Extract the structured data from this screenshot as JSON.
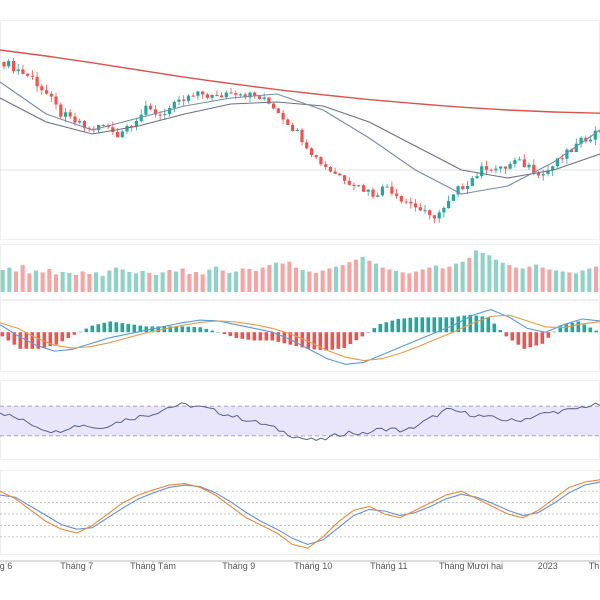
{
  "colors": {
    "up": "#26a69a",
    "down": "#ef5350",
    "ma_long": "#d9534f",
    "ma_mid": "#6c6f85",
    "ma_short": "#7a8aa8",
    "macd_line": "#5b9bd5",
    "signal_line": "#e69a4f",
    "rsi": "#5a5f8c",
    "rsi_band": "#e9e6fb",
    "stoch_k": "#e88a3c",
    "stoch_d": "#6b8fd6",
    "grid": "#eeeeee",
    "frame": "#bbbbbb"
  },
  "chart_data": [
    {
      "type": "candlestick",
      "title": "",
      "series": [
        {
          "name": "",
          "role": "candles",
          "ohlc_shape": "daily bars, Jun 2022 – Jan 2023"
        },
        {
          "name": "",
          "role": "ma-long",
          "values": [
            100,
            98.5,
            96.8,
            95,
            93.2,
            91.6,
            90.1,
            88.8,
            87.6,
            86.6,
            85.7,
            85.0,
            84.5,
            84.2
          ]
        },
        {
          "name": "",
          "role": "ma-mid",
          "values": [
            88,
            82,
            79,
            81,
            84,
            86.5,
            87,
            86,
            82,
            76,
            70,
            68,
            70,
            74
          ]
        },
        {
          "name": "",
          "role": "ma-short",
          "values": [
            92,
            84,
            80,
            83,
            86,
            88,
            89,
            85,
            78,
            70,
            64,
            66,
            72,
            80
          ]
        }
      ],
      "close": [
        97,
        95,
        93,
        89,
        84,
        82,
        80,
        81,
        79,
        82,
        85,
        84,
        86,
        88,
        89,
        88,
        90,
        89,
        88,
        86,
        82,
        78,
        73,
        70,
        68,
        66,
        64,
        66,
        63,
        61,
        58,
        60,
        65,
        68,
        71,
        70,
        72,
        71,
        69,
        72,
        75,
        78,
        80
      ]
    },
    {
      "type": "bar",
      "role": "volume",
      "values": [
        0.45,
        0.5,
        0.42,
        0.55,
        0.38,
        0.44,
        0.4,
        0.47,
        0.36,
        0.41,
        0.39,
        0.35,
        0.42,
        0.37,
        0.4,
        0.33,
        0.44,
        0.5,
        0.46,
        0.41,
        0.38,
        0.43,
        0.39,
        0.35,
        0.4,
        0.45,
        0.42,
        0.48,
        0.37,
        0.41,
        0.36,
        0.46,
        0.52,
        0.44,
        0.39,
        0.42,
        0.48,
        0.47,
        0.43,
        0.5,
        0.55,
        0.6,
        0.58,
        0.62,
        0.5,
        0.45,
        0.42,
        0.39,
        0.44,
        0.48,
        0.52,
        0.55,
        0.61,
        0.66,
        0.72,
        0.64,
        0.58,
        0.5,
        0.46,
        0.43,
        0.4,
        0.38,
        0.42,
        0.46,
        0.5,
        0.54,
        0.48,
        0.52,
        0.58,
        0.62,
        0.7,
        0.85,
        0.8,
        0.75,
        0.66,
        0.6,
        0.55,
        0.5,
        0.48,
        0.52,
        0.56,
        0.5,
        0.46,
        0.44,
        0.42,
        0.4,
        0.38,
        0.44,
        0.48,
        0.52
      ]
    },
    {
      "type": "line",
      "role": "macd",
      "macd": [
        0.2,
        -0.1,
        -0.35,
        -0.5,
        -0.45,
        -0.3,
        -0.15,
        -0.05,
        0.05,
        0.15,
        0.25,
        0.32,
        0.3,
        0.2,
        0.1,
        0.0,
        -0.2,
        -0.45,
        -0.7,
        -0.85,
        -0.8,
        -0.6,
        -0.4,
        -0.2,
        0.0,
        0.2,
        0.45,
        0.6,
        0.4,
        0.1,
        0.0,
        0.2,
        0.35,
        0.3
      ],
      "signal": [
        0.25,
        0.1,
        -0.15,
        -0.35,
        -0.42,
        -0.38,
        -0.28,
        -0.15,
        -0.02,
        0.08,
        0.18,
        0.26,
        0.3,
        0.27,
        0.2,
        0.1,
        -0.05,
        -0.25,
        -0.48,
        -0.66,
        -0.75,
        -0.7,
        -0.56,
        -0.38,
        -0.18,
        0.02,
        0.24,
        0.42,
        0.45,
        0.3,
        0.14,
        0.12,
        0.22,
        0.28
      ]
    },
    {
      "type": "line",
      "role": "rsi",
      "band": [
        30,
        70
      ],
      "values": [
        62,
        55,
        48,
        40,
        35,
        42,
        45,
        40,
        46,
        52,
        56,
        60,
        68,
        72,
        70,
        66,
        60,
        55,
        50,
        45,
        38,
        30,
        25,
        24,
        30,
        35,
        32,
        38,
        40,
        36,
        45,
        55,
        65,
        62,
        58,
        55,
        52,
        50,
        55,
        60,
        63,
        65,
        70,
        72
      ]
    },
    {
      "type": "line",
      "role": "stochastic",
      "k": [
        80,
        70,
        55,
        40,
        30,
        25,
        35,
        50,
        65,
        75,
        82,
        88,
        90,
        85,
        75,
        60,
        45,
        35,
        25,
        10,
        5,
        20,
        40,
        55,
        60,
        50,
        45,
        55,
        65,
        75,
        80,
        70,
        60,
        50,
        45,
        55,
        70,
        85,
        92,
        95
      ],
      "d": [
        75,
        72,
        60,
        48,
        36,
        30,
        32,
        45,
        58,
        70,
        78,
        85,
        88,
        86,
        78,
        66,
        52,
        40,
        30,
        18,
        10,
        16,
        32,
        48,
        56,
        54,
        48,
        52,
        60,
        70,
        76,
        72,
        64,
        55,
        48,
        52,
        64,
        78,
        88,
        92
      ]
    }
  ],
  "x_axis": {
    "labels": [
      {
        "text": "g 6",
        "pos": 0.01
      },
      {
        "text": "Tháng 7",
        "pos": 0.128
      },
      {
        "text": "Tháng Tám",
        "pos": 0.255
      },
      {
        "text": "Tháng 9",
        "pos": 0.398
      },
      {
        "text": "Tháng 10",
        "pos": 0.522
      },
      {
        "text": "Tháng 11",
        "pos": 0.648
      },
      {
        "text": "Tháng Mười hai",
        "pos": 0.785
      },
      {
        "text": "2023",
        "pos": 0.913
      },
      {
        "text": "Th",
        "pos": 0.99
      }
    ]
  }
}
